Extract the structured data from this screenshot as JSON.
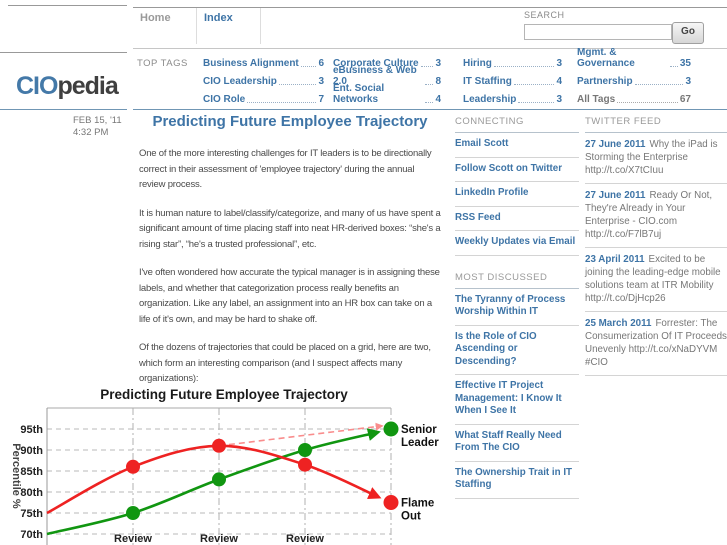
{
  "colors": {
    "link_blue": "#3e74a6",
    "divider_blue": "#7096b4",
    "chart_red": "#ee2222",
    "chart_green": "#119611"
  },
  "brand": {
    "cio": "CIO",
    "pedia": "pedia"
  },
  "nav": {
    "items": [
      {
        "label": "Home",
        "muted": true
      },
      {
        "label": "Index",
        "muted": false
      }
    ]
  },
  "search": {
    "label": "SEARCH",
    "button": "Go",
    "value": ""
  },
  "top_tags": {
    "label": "TOP TAGS",
    "columns": [
      [
        {
          "name": "Business Alignment",
          "count": "6"
        },
        {
          "name": "CIO Leadership",
          "count": "3"
        },
        {
          "name": "CIO Role",
          "count": "7"
        }
      ],
      [
        {
          "name": "Corporate Culture",
          "count": "3"
        },
        {
          "name": "eBusiness & Web 2.0",
          "count": "8"
        },
        {
          "name": "Ent. Social Networks",
          "count": "4"
        }
      ],
      [
        {
          "name": "Hiring",
          "count": "3"
        },
        {
          "name": "IT Staffing",
          "count": "4"
        },
        {
          "name": "Leadership",
          "count": "3"
        }
      ],
      [
        {
          "name": "Mgmt. & Governance",
          "count": "35"
        },
        {
          "name": "Partnership",
          "count": "3"
        },
        {
          "name": "All Tags",
          "count": "67",
          "muted": true
        }
      ]
    ]
  },
  "post": {
    "date_line1": "FEB 15, '11",
    "date_line2": "4:32 PM",
    "title": "Predicting Future Employee Trajectory",
    "paragraphs": [
      "One of the more interesting challenges for IT leaders is to be directionally correct in their assessment of 'employee trajectory' during the annual review process.",
      "It is human nature to label/classify/categorize, and many of us have spent a significant amount of time placing staff into neat HR-derived boxes: “she's a rising star”, “he's a trusted professional”, etc.",
      "I've often wondered how accurate the typical manager is in assigning these labels, and whether that categorization process really benefits an organization.  Like any label, an assignment into an HR box can take on a life of it's own, and may be hard to shake off.",
      "Of the dozens of trajectories that could be placed on a grid, here are two, which form an interesting comparison (and I suspect affects many organizations):"
    ]
  },
  "connecting": {
    "title": "CONNECTING",
    "links": [
      "Email Scott",
      "Follow Scott on Twitter",
      "LinkedIn Profile",
      "RSS Feed",
      "Weekly Updates via Email"
    ]
  },
  "most_discussed": {
    "title": "MOST DISCUSSED",
    "links": [
      "The Tyranny of Process Worship Within IT",
      "Is the Role of CIO Ascending or Descending?",
      "Effective IT Project Management: I Know It When I See It",
      "What Staff Really Need From The CIO",
      "The Ownership Trait in IT Staffing"
    ]
  },
  "twitter": {
    "title": "TWITTER FEED",
    "tweets": [
      {
        "date": "27 June 2011",
        "text": "Why the iPad is Storming the Enterprise http://t.co/X7tCIuu"
      },
      {
        "date": "27 June 2011",
        "text": "Ready Or Not, They're Already in Your Enterprise - CIO.com http://t.co/F7lB7uj"
      },
      {
        "date": "23 April 2011",
        "text": "Excited to be joining the leading-edge mobile solutions team at ITR Mobility http://t.co/DjHcp26"
      },
      {
        "date": "25 March 2011",
        "text": "Forrester: The Consumerization Of IT Proceeds Unevenly http://t.co/xNaDYVM #CIO"
      }
    ]
  },
  "chart_data": {
    "type": "line",
    "title": "Predicting Future Employee Trajectory",
    "ylabel": "Percentile %",
    "ytick_values": [
      95,
      90,
      85,
      80,
      75,
      70
    ],
    "ytick_labels": [
      "95th",
      "90th",
      "85th",
      "80th",
      "75th",
      "70th"
    ],
    "ylim": [
      67,
      99
    ],
    "xtick_positions": [
      1,
      2,
      3
    ],
    "xtick_labels": [
      "Review",
      "Review",
      "Review"
    ],
    "grid": "dashed",
    "legend_position": "right-edge-labels",
    "series": [
      {
        "name": "Senior Leader",
        "label_lines": [
          "Senior",
          "Leader"
        ],
        "color": "#119611",
        "dashed": false,
        "x": [
          0,
          1,
          2,
          3,
          4
        ],
        "values": [
          70,
          75,
          83,
          90,
          95
        ],
        "markers": [
          1,
          2,
          3
        ],
        "end_marker": true,
        "arrow": true
      },
      {
        "name": "Flame Out",
        "label_lines": [
          "Flame",
          "Out"
        ],
        "color": "#ee2222",
        "dashed": false,
        "x": [
          0,
          1,
          2,
          3,
          4
        ],
        "values": [
          75,
          86,
          91,
          86.5,
          77.5
        ],
        "markers": [
          1,
          2,
          3
        ],
        "end_marker": true,
        "arrow": true
      },
      {
        "name": "Projected trajectory",
        "label_lines": [],
        "color": "#f98d8d",
        "dashed": true,
        "x": [
          2,
          4
        ],
        "values": [
          91,
          96
        ],
        "markers": [],
        "end_marker": false,
        "arrow": true
      }
    ]
  }
}
